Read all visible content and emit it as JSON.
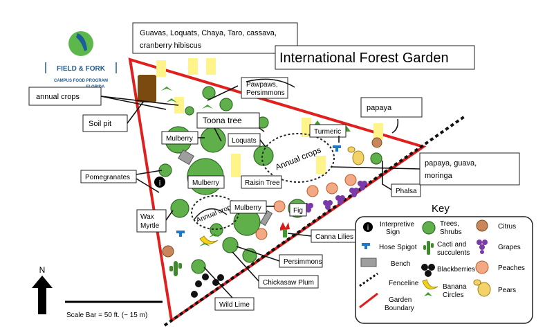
{
  "title": "International Forest Garden",
  "logo": {
    "name": "FIELD & FORK",
    "sub1": "CAMPUS FOOD PROGRAM",
    "sub2": "FLORIDA"
  },
  "callouts": {
    "guavas": [
      "Guavas, Loquats, Chaya, Taro, cassava,",
      "cranberry hibiscus"
    ],
    "annual_crops": "annual crops",
    "soil_pit": "Soil pit",
    "papaya": "papaya",
    "papaya_guava": [
      "papaya, guava,",
      "moringa"
    ]
  },
  "labels": {
    "pawpaws": [
      "Pawpaws,",
      "Persimmons"
    ],
    "toona": "Toona tree",
    "turmeric": "Turmeric",
    "mulberry1": "Mulberry",
    "loquats": "Loquats",
    "mulberry2": "Mulberry",
    "raisin": "Raisin Tree",
    "pomegranates": "Pomegranates",
    "phalsa": "Phalsa",
    "wax_myrtle": [
      "Wax",
      "Myrtle"
    ],
    "mulberry3": "Mulberry",
    "fig": "Fig",
    "canna": "Canna Lilies",
    "persimmons": "Persimmons",
    "chickasaw": "Chickasaw Plum",
    "wild_lime": "Wild Lime",
    "annual_crops_1": "Annual crops",
    "annual_crops_2": "Annual crops"
  },
  "north": "N",
  "scale_bar": "Scale Bar = 50 ft. (~ 15 m)",
  "key": {
    "title": "Key",
    "items": [
      [
        "Interpretive",
        "Sign"
      ],
      [
        "Hose Spigot"
      ],
      [
        "Bench"
      ],
      [
        "Fenceline"
      ],
      [
        "Garden",
        "Boundary"
      ],
      [
        "Trees,",
        "Shrubs"
      ],
      [
        "Cacti and",
        "succulents"
      ],
      [
        "Blackberries"
      ],
      [
        "Banana",
        "Circles"
      ],
      [
        "Citrus"
      ],
      [
        "Grapes"
      ],
      [
        "Peaches"
      ],
      [
        "Pears"
      ]
    ]
  },
  "colors": {
    "boundary": "#e0201e",
    "tree": "#5fb04a",
    "banana_marker": "#fff48a",
    "soil_pit": "#7a4a10",
    "peach": "#f3a983",
    "grape": "#7a3aa8",
    "citrus": "#c8865a",
    "bench": "#9e9e9e",
    "canna": "#d81a1a",
    "logo_blue": "#1b5e9a",
    "logo_green": "#5cb84a"
  }
}
